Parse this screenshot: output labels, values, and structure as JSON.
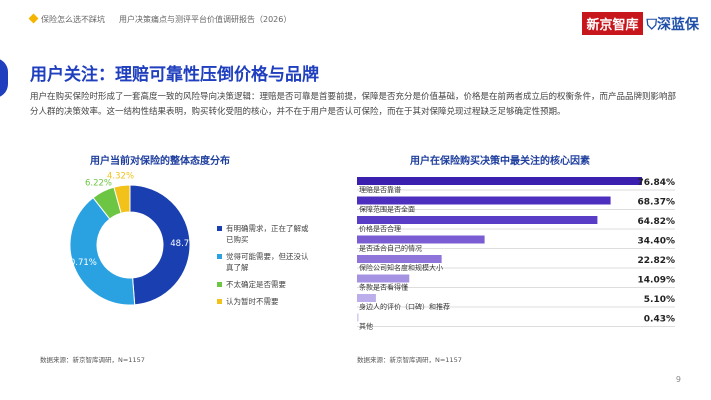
{
  "header": {
    "series": "保险怎么选不踩坑",
    "report": "用户决策痛点与测评平台价值调研报告（2026）"
  },
  "logos": {
    "logo1_a": "新京",
    "logo1_b": "智库",
    "logo2": "深蓝保"
  },
  "title": "用户关注：理赔可靠性压倒价格与品牌",
  "paragraph": "用户在购买保险时形成了一套高度一致的风险导向决策逻辑：理赔是否可靠是首要前提，保障是否充分是价值基础，价格是在前两者成立后的权衡条件，而产品品牌则影响部分人群的决策效率。这一结构性结果表明，购买转化受阻的核心，并不在于用户是否认可保险，而在于其对保障兑现过程缺乏足够确定性预期。",
  "page": "9",
  "chart_data": [
    {
      "type": "pie",
      "title": "用户当前对保险的整体态度分布",
      "donut": true,
      "categories": [
        "有明确需求，正在了解或已购买",
        "觉得可能需要，但还没认真了解",
        "不太确定是否需要",
        "认为暂时不需要"
      ],
      "values": [
        48.75,
        40.71,
        6.22,
        4.32
      ],
      "labels": [
        "48.75%",
        "40.71%",
        "6.22%",
        "4.32%"
      ],
      "colors": [
        "#1a3fb0",
        "#2aa2e2",
        "#6cc644",
        "#f2c21b"
      ],
      "legend": "right",
      "source": "数据来源：新京智库调研，N=1157"
    },
    {
      "type": "bar",
      "orientation": "horizontal",
      "title": "用户在保险购买决策中最关注的核心因素",
      "categories": [
        "理赔是否靠谱",
        "保障范围是否全面",
        "价格是否合理",
        "是否适合自己的情况",
        "保险公司知名度和规模大小",
        "条款是否看得懂",
        "身边人的评价（口碑）和推荐",
        "其他"
      ],
      "values": [
        76.84,
        68.37,
        64.82,
        34.4,
        22.82,
        14.09,
        5.1,
        0.43
      ],
      "labels": [
        "76.84%",
        "68.37%",
        "64.82%",
        "34.40%",
        "22.82%",
        "14.09%",
        "5.10%",
        "0.43%"
      ],
      "colors": [
        "#3b1fae",
        "#4d2fbf",
        "#5a3dc6",
        "#7a5dd2",
        "#8f75da",
        "#a592e2",
        "#bcaeeb",
        "#d6cdf3"
      ],
      "source": "数据来源：新京智库调研，N=1157"
    }
  ]
}
